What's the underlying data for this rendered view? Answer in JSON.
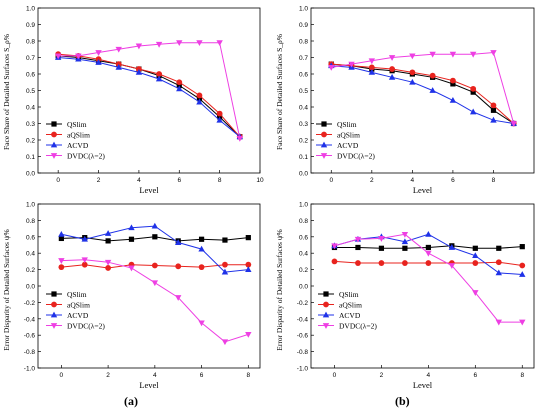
{
  "figure_labels": [
    "(a)",
    "(b)"
  ],
  "chart_data": [
    {
      "type": "line",
      "panel": "top-left",
      "xlabel": "Level",
      "ylabel": "Face Share of Detailed Surfaces S_ρ%",
      "xlim": [
        -1,
        10
      ],
      "ylim": [
        0.0,
        1.0
      ],
      "xticks": [
        "0",
        "2",
        "4",
        "6",
        "8",
        "10"
      ],
      "xtick_values": [
        0,
        2,
        4,
        6,
        8,
        10
      ],
      "yticks": [
        "0.0",
        "0.1",
        "0.2",
        "0.3",
        "0.4",
        "0.5",
        "0.6",
        "0.7",
        "0.8",
        "0.9",
        "1.0"
      ],
      "ytick_values": [
        0.0,
        0.1,
        0.2,
        0.3,
        0.4,
        0.5,
        0.6,
        0.7,
        0.8,
        0.9,
        1.0
      ],
      "legend_position": "bottom-left",
      "x": [
        0,
        1,
        2,
        3,
        4,
        5,
        6,
        7,
        8,
        9
      ],
      "series": [
        {
          "name": "QSlim",
          "color": "#000000",
          "marker": "square",
          "values": [
            0.71,
            0.7,
            0.68,
            0.66,
            0.63,
            0.59,
            0.53,
            0.45,
            0.34,
            0.22
          ]
        },
        {
          "name": "aQSlim",
          "color": "#e8231e",
          "marker": "circle",
          "values": [
            0.72,
            0.71,
            0.69,
            0.66,
            0.63,
            0.6,
            0.55,
            0.47,
            0.36,
            0.22
          ]
        },
        {
          "name": "ACVD",
          "color": "#1f32e8",
          "marker": "triangle-up",
          "values": [
            0.7,
            0.69,
            0.67,
            0.64,
            0.61,
            0.57,
            0.51,
            0.43,
            0.32,
            0.22
          ]
        },
        {
          "name": "DVDC(λ=2)",
          "color": "#ee3fe3",
          "marker": "triangle-down",
          "values": [
            0.71,
            0.71,
            0.73,
            0.75,
            0.77,
            0.78,
            0.79,
            0.79,
            0.79,
            0.21
          ]
        }
      ]
    },
    {
      "type": "line",
      "panel": "top-right",
      "xlabel": "Level",
      "ylabel": "Face Share of Detailed Surfaces S_ρ%",
      "xlim": [
        -1,
        10
      ],
      "ylim": [
        0.0,
        1.0
      ],
      "xticks": [
        "0",
        "2",
        "4",
        "6",
        "8"
      ],
      "xtick_values": [
        0,
        2,
        4,
        6,
        8
      ],
      "yticks": [
        "0.0",
        "0.1",
        "0.2",
        "0.3",
        "0.4",
        "0.5",
        "0.6",
        "0.7",
        "0.8",
        "0.9",
        "1.0"
      ],
      "ytick_values": [
        0.0,
        0.1,
        0.2,
        0.3,
        0.4,
        0.5,
        0.6,
        0.7,
        0.8,
        0.9,
        1.0
      ],
      "legend_position": "bottom-left",
      "x": [
        0,
        1,
        2,
        3,
        4,
        5,
        6,
        7,
        8,
        9
      ],
      "series": [
        {
          "name": "QSlim",
          "color": "#000000",
          "marker": "square",
          "values": [
            0.66,
            0.65,
            0.63,
            0.62,
            0.6,
            0.58,
            0.54,
            0.49,
            0.38,
            0.3
          ]
        },
        {
          "name": "aQSlim",
          "color": "#e8231e",
          "marker": "circle",
          "values": [
            0.66,
            0.65,
            0.64,
            0.63,
            0.61,
            0.59,
            0.56,
            0.51,
            0.41,
            0.3
          ]
        },
        {
          "name": "ACVD",
          "color": "#1f32e8",
          "marker": "triangle-up",
          "values": [
            0.65,
            0.64,
            0.61,
            0.58,
            0.55,
            0.5,
            0.44,
            0.37,
            0.32,
            0.3
          ]
        },
        {
          "name": "DVDC(λ=2)",
          "color": "#ee3fe3",
          "marker": "triangle-down",
          "values": [
            0.64,
            0.66,
            0.68,
            0.7,
            0.71,
            0.72,
            0.72,
            0.72,
            0.73,
            0.3
          ]
        }
      ]
    },
    {
      "type": "line",
      "panel": "bottom-left",
      "xlabel": "Level",
      "ylabel": "Error Disparity of Detailed Surfaces ψ%",
      "xlim": [
        -1,
        8.5
      ],
      "ylim": [
        -1.0,
        1.0
      ],
      "xticks": [
        "0",
        "2",
        "4",
        "6",
        "8"
      ],
      "xtick_values": [
        0,
        2,
        4,
        6,
        8
      ],
      "yticks": [
        "-1.0",
        "-0.8",
        "-0.6",
        "-0.4",
        "-0.2",
        "0.0",
        "0.2",
        "0.4",
        "0.6",
        "0.8",
        "1.0"
      ],
      "ytick_values": [
        -1.0,
        -0.8,
        -0.6,
        -0.4,
        -0.2,
        0.0,
        0.2,
        0.4,
        0.6,
        0.8,
        1.0
      ],
      "legend_position": "bottom-left",
      "x": [
        0,
        1,
        2,
        3,
        4,
        5,
        6,
        7,
        8
      ],
      "series": [
        {
          "name": "QSlim",
          "color": "#000000",
          "marker": "square",
          "values": [
            0.58,
            0.59,
            0.55,
            0.57,
            0.6,
            0.55,
            0.57,
            0.56,
            0.59
          ]
        },
        {
          "name": "aQSlim",
          "color": "#e8231e",
          "marker": "circle",
          "values": [
            0.23,
            0.26,
            0.22,
            0.26,
            0.25,
            0.24,
            0.23,
            0.26,
            0.26
          ]
        },
        {
          "name": "ACVD",
          "color": "#1f32e8",
          "marker": "triangle-up",
          "values": [
            0.63,
            0.57,
            0.64,
            0.71,
            0.73,
            0.53,
            0.45,
            0.17,
            0.2
          ]
        },
        {
          "name": "DVDC(λ=2)",
          "color": "#ee3fe3",
          "marker": "triangle-down",
          "values": [
            0.31,
            0.32,
            0.29,
            0.22,
            0.04,
            -0.14,
            -0.45,
            -0.68,
            -0.59
          ]
        }
      ]
    },
    {
      "type": "line",
      "panel": "bottom-right",
      "xlabel": "Level",
      "ylabel": "Error Disparity of Detailed Surfaces ψ%",
      "xlim": [
        -1,
        8.5
      ],
      "ylim": [
        -1.0,
        1.0
      ],
      "xticks": [
        "0",
        "2",
        "4",
        "6",
        "8"
      ],
      "xtick_values": [
        0,
        2,
        4,
        6,
        8
      ],
      "yticks": [
        "-1.0",
        "-0.8",
        "-0.6",
        "-0.4",
        "-0.2",
        "0.0",
        "0.2",
        "0.4",
        "0.6",
        "0.8",
        "1.0"
      ],
      "ytick_values": [
        -1.0,
        -0.8,
        -0.6,
        -0.4,
        -0.2,
        0.0,
        0.2,
        0.4,
        0.6,
        0.8,
        1.0
      ],
      "legend_position": "bottom-left",
      "x": [
        0,
        1,
        2,
        3,
        4,
        5,
        6,
        7,
        8
      ],
      "series": [
        {
          "name": "QSlim",
          "color": "#000000",
          "marker": "square",
          "values": [
            0.47,
            0.47,
            0.46,
            0.46,
            0.47,
            0.49,
            0.46,
            0.46,
            0.48
          ]
        },
        {
          "name": "aQSlim",
          "color": "#e8231e",
          "marker": "circle",
          "values": [
            0.3,
            0.28,
            0.28,
            0.28,
            0.28,
            0.28,
            0.28,
            0.29,
            0.25
          ]
        },
        {
          "name": "ACVD",
          "color": "#1f32e8",
          "marker": "triangle-up",
          "values": [
            0.49,
            0.57,
            0.6,
            0.54,
            0.63,
            0.47,
            0.37,
            0.16,
            0.14
          ]
        },
        {
          "name": "DVDC(λ=2)",
          "color": "#ee3fe3",
          "marker": "triangle-down",
          "values": [
            0.49,
            0.57,
            0.58,
            0.63,
            0.4,
            0.25,
            -0.08,
            -0.44,
            -0.44
          ]
        }
      ]
    }
  ]
}
